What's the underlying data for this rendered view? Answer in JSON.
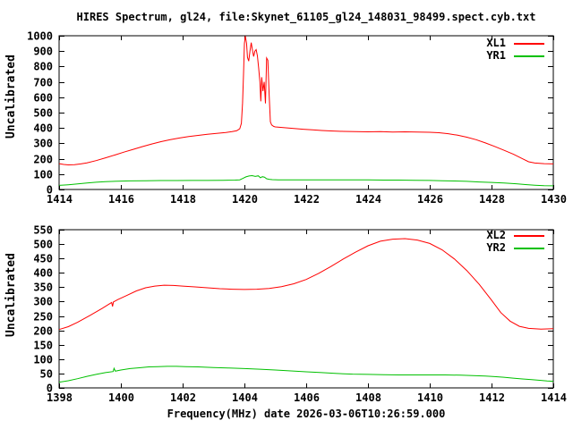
{
  "title": "HIRES Spectrum, gl24, file:Skynet_61105_gl24_148031_98499.spect.cyb.txt",
  "background": "#ffffff",
  "text_color": "#000000",
  "chart_data": [
    {
      "type": "line",
      "panel": "top",
      "ylabel": "Uncalibrated",
      "xlim": [
        1414,
        1430
      ],
      "ylim": [
        0,
        1000
      ],
      "xticks": [
        1414,
        1416,
        1418,
        1420,
        1422,
        1424,
        1426,
        1428,
        1430
      ],
      "yticks": [
        0,
        100,
        200,
        300,
        400,
        500,
        600,
        700,
        800,
        900,
        1000
      ],
      "grid": false,
      "legend_position": "top-right",
      "series": [
        {
          "name": "XL1",
          "color": "#ff0000",
          "points": [
            [
              1414.0,
              168
            ],
            [
              1414.15,
              163
            ],
            [
              1414.3,
              160
            ],
            [
              1414.5,
              161
            ],
            [
              1414.7,
              166
            ],
            [
              1414.9,
              173
            ],
            [
              1415.2,
              188
            ],
            [
              1415.5,
              206
            ],
            [
              1415.8,
              224
            ],
            [
              1416.1,
              243
            ],
            [
              1416.4,
              261
            ],
            [
              1416.7,
              279
            ],
            [
              1417.0,
              296
            ],
            [
              1417.3,
              311
            ],
            [
              1417.6,
              324
            ],
            [
              1417.9,
              335
            ],
            [
              1418.2,
              344
            ],
            [
              1418.5,
              352
            ],
            [
              1418.8,
              359
            ],
            [
              1419.1,
              365
            ],
            [
              1419.4,
              371
            ],
            [
              1419.6,
              376
            ],
            [
              1419.75,
              382
            ],
            [
              1419.85,
              395
            ],
            [
              1419.9,
              430
            ],
            [
              1419.94,
              560
            ],
            [
              1419.97,
              750
            ],
            [
              1420.0,
              950
            ],
            [
              1420.03,
              998
            ],
            [
              1420.07,
              950
            ],
            [
              1420.1,
              860
            ],
            [
              1420.14,
              835
            ],
            [
              1420.18,
              900
            ],
            [
              1420.22,
              955
            ],
            [
              1420.26,
              905
            ],
            [
              1420.3,
              865
            ],
            [
              1420.34,
              900
            ],
            [
              1420.38,
              910
            ],
            [
              1420.42,
              870
            ],
            [
              1420.46,
              790
            ],
            [
              1420.5,
              700
            ],
            [
              1420.53,
              574
            ],
            [
              1420.56,
              730
            ],
            [
              1420.6,
              640
            ],
            [
              1420.64,
              700
            ],
            [
              1420.68,
              560
            ],
            [
              1420.72,
              855
            ],
            [
              1420.76,
              840
            ],
            [
              1420.8,
              620
            ],
            [
              1420.84,
              440
            ],
            [
              1420.88,
              420
            ],
            [
              1420.95,
              410
            ],
            [
              1421.0,
              407
            ],
            [
              1421.3,
              402
            ],
            [
              1421.6,
              397
            ],
            [
              1421.9,
              392
            ],
            [
              1422.2,
              388
            ],
            [
              1422.5,
              384
            ],
            [
              1422.8,
              381
            ],
            [
              1423.2,
              378
            ],
            [
              1423.6,
              376
            ],
            [
              1424.0,
              375
            ],
            [
              1424.4,
              376
            ],
            [
              1424.8,
              374
            ],
            [
              1425.2,
              375
            ],
            [
              1425.6,
              373
            ],
            [
              1426.0,
              372
            ],
            [
              1426.3,
              369
            ],
            [
              1426.6,
              363
            ],
            [
              1426.9,
              353
            ],
            [
              1427.2,
              340
            ],
            [
              1427.5,
              324
            ],
            [
              1427.8,
              303
            ],
            [
              1428.1,
              280
            ],
            [
              1428.4,
              255
            ],
            [
              1428.7,
              230
            ],
            [
              1429.0,
              200
            ],
            [
              1429.2,
              180
            ],
            [
              1429.4,
              172
            ],
            [
              1429.7,
              168
            ],
            [
              1430.0,
              166
            ]
          ]
        },
        {
          "name": "YR1",
          "color": "#00c000",
          "points": [
            [
              1414.0,
              27
            ],
            [
              1414.3,
              31
            ],
            [
              1414.6,
              36
            ],
            [
              1414.9,
              42
            ],
            [
              1415.2,
              47
            ],
            [
              1415.5,
              51
            ],
            [
              1415.9,
              54
            ],
            [
              1416.3,
              56
            ],
            [
              1416.8,
              57
            ],
            [
              1417.3,
              58
            ],
            [
              1417.8,
              58
            ],
            [
              1418.3,
              59
            ],
            [
              1418.8,
              59
            ],
            [
              1419.3,
              60
            ],
            [
              1419.7,
              61
            ],
            [
              1419.85,
              63
            ],
            [
              1419.95,
              72
            ],
            [
              1420.05,
              82
            ],
            [
              1420.15,
              88
            ],
            [
              1420.25,
              90
            ],
            [
              1420.35,
              85
            ],
            [
              1420.45,
              89
            ],
            [
              1420.52,
              76
            ],
            [
              1420.58,
              83
            ],
            [
              1420.65,
              80
            ],
            [
              1420.72,
              70
            ],
            [
              1420.8,
              66
            ],
            [
              1420.9,
              64
            ],
            [
              1421.1,
              63
            ],
            [
              1421.5,
              63
            ],
            [
              1422.0,
              63
            ],
            [
              1422.5,
              62
            ],
            [
              1423.0,
              62
            ],
            [
              1423.5,
              62
            ],
            [
              1424.0,
              62
            ],
            [
              1424.5,
              61
            ],
            [
              1425.0,
              61
            ],
            [
              1425.5,
              60
            ],
            [
              1426.0,
              59
            ],
            [
              1426.4,
              57
            ],
            [
              1426.8,
              55
            ],
            [
              1427.2,
              53
            ],
            [
              1427.6,
              49
            ],
            [
              1428.0,
              46
            ],
            [
              1428.4,
              42
            ],
            [
              1428.8,
              37
            ],
            [
              1429.1,
              32
            ],
            [
              1429.4,
              28
            ],
            [
              1429.7,
              25
            ],
            [
              1430.0,
              24
            ]
          ]
        }
      ]
    },
    {
      "type": "line",
      "panel": "bottom",
      "xlabel": "Frequency(MHz) date 2026-03-06T10:26:59.000",
      "ylabel": "Uncalibrated",
      "xlim": [
        1398,
        1414
      ],
      "ylim": [
        0,
        550
      ],
      "xticks": [
        1398,
        1400,
        1402,
        1404,
        1406,
        1408,
        1410,
        1412,
        1414
      ],
      "yticks": [
        0,
        50,
        100,
        150,
        200,
        250,
        300,
        350,
        400,
        450,
        500,
        550
      ],
      "grid": false,
      "legend_position": "top-right",
      "series": [
        {
          "name": "XL2",
          "color": "#ff0000",
          "points": [
            [
              1398.0,
              203
            ],
            [
              1398.3,
              213
            ],
            [
              1398.6,
              228
            ],
            [
              1399.0,
              252
            ],
            [
              1399.4,
              277
            ],
            [
              1399.7,
              297
            ],
            [
              1399.73,
              283
            ],
            [
              1399.76,
              299
            ],
            [
              1399.9,
              307
            ],
            [
              1400.2,
              322
            ],
            [
              1400.5,
              337
            ],
            [
              1400.8,
              348
            ],
            [
              1401.1,
              354
            ],
            [
              1401.4,
              357
            ],
            [
              1401.7,
              356
            ],
            [
              1402.0,
              354
            ],
            [
              1402.4,
              351
            ],
            [
              1402.8,
              348
            ],
            [
              1403.2,
              345
            ],
            [
              1403.6,
              343
            ],
            [
              1404.0,
              342
            ],
            [
              1404.4,
              343
            ],
            [
              1404.8,
              346
            ],
            [
              1405.2,
              352
            ],
            [
              1405.6,
              362
            ],
            [
              1406.0,
              377
            ],
            [
              1406.4,
              398
            ],
            [
              1406.8,
              422
            ],
            [
              1407.2,
              448
            ],
            [
              1407.6,
              472
            ],
            [
              1408.0,
              494
            ],
            [
              1408.4,
              510
            ],
            [
              1408.8,
              517
            ],
            [
              1409.2,
              519
            ],
            [
              1409.6,
              514
            ],
            [
              1410.0,
              502
            ],
            [
              1410.4,
              480
            ],
            [
              1410.8,
              448
            ],
            [
              1411.2,
              408
            ],
            [
              1411.6,
              360
            ],
            [
              1412.0,
              305
            ],
            [
              1412.3,
              262
            ],
            [
              1412.6,
              232
            ],
            [
              1412.9,
              214
            ],
            [
              1413.2,
              207
            ],
            [
              1413.6,
              204
            ],
            [
              1414.0,
              206
            ]
          ]
        },
        {
          "name": "YR2",
          "color": "#00c000",
          "points": [
            [
              1398.0,
              20
            ],
            [
              1398.3,
              25
            ],
            [
              1398.6,
              32
            ],
            [
              1398.9,
              40
            ],
            [
              1399.2,
              47
            ],
            [
              1399.5,
              53
            ],
            [
              1399.75,
              57
            ],
            [
              1399.78,
              68
            ],
            [
              1399.82,
              58
            ],
            [
              1400.0,
              62
            ],
            [
              1400.3,
              67
            ],
            [
              1400.6,
              70
            ],
            [
              1400.9,
              73
            ],
            [
              1401.2,
              74
            ],
            [
              1401.5,
              75
            ],
            [
              1401.8,
              75
            ],
            [
              1402.1,
              74
            ],
            [
              1402.5,
              73
            ],
            [
              1403.0,
              71
            ],
            [
              1403.5,
              69
            ],
            [
              1404.0,
              67
            ],
            [
              1404.5,
              65
            ],
            [
              1405.0,
              62
            ],
            [
              1405.5,
              59
            ],
            [
              1406.0,
              56
            ],
            [
              1406.5,
              53
            ],
            [
              1407.0,
              50
            ],
            [
              1407.5,
              48
            ],
            [
              1408.0,
              47
            ],
            [
              1408.5,
              46
            ],
            [
              1409.0,
              45
            ],
            [
              1409.5,
              45
            ],
            [
              1410.0,
              45
            ],
            [
              1410.5,
              45
            ],
            [
              1411.0,
              44
            ],
            [
              1411.4,
              43
            ],
            [
              1411.8,
              41
            ],
            [
              1412.1,
              39
            ],
            [
              1412.4,
              37
            ],
            [
              1412.7,
              34
            ],
            [
              1413.0,
              31
            ],
            [
              1413.3,
              29
            ],
            [
              1413.6,
              26
            ],
            [
              1413.8,
              24
            ],
            [
              1414.0,
              23
            ]
          ]
        }
      ]
    }
  ]
}
